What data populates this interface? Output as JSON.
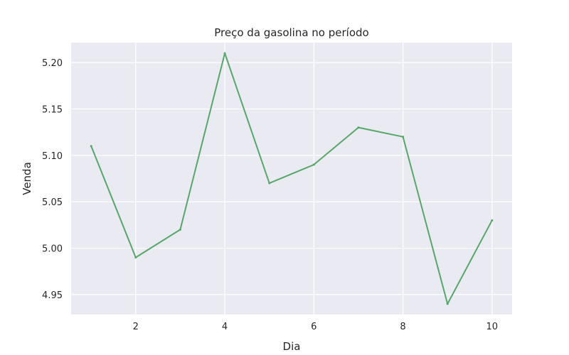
{
  "chart_data": {
    "type": "line",
    "title": "Preço da gasolina no período",
    "xlabel": "Dia",
    "ylabel": "Venda",
    "x": [
      1,
      2,
      3,
      4,
      5,
      6,
      7,
      8,
      9,
      10
    ],
    "series": [
      {
        "values": [
          5.11,
          4.99,
          5.02,
          5.21,
          5.07,
          5.09,
          5.13,
          5.12,
          4.94,
          5.03
        ]
      }
    ],
    "xlim": [
      0.55,
      10.45
    ],
    "ylim": [
      4.9285,
      5.2215
    ],
    "xticks": [
      2,
      4,
      6,
      8,
      10
    ],
    "xtick_labels": [
      "2",
      "4",
      "6",
      "8",
      "10"
    ],
    "yticks": [
      4.95,
      5.0,
      5.05,
      5.1,
      5.15,
      5.2
    ],
    "ytick_labels": [
      "4.95",
      "5.00",
      "5.05",
      "5.10",
      "5.15",
      "5.20"
    ],
    "grid": true,
    "colors": {
      "background": "#eaeaf2",
      "grid": "#ffffff",
      "line": "#55a868"
    }
  }
}
